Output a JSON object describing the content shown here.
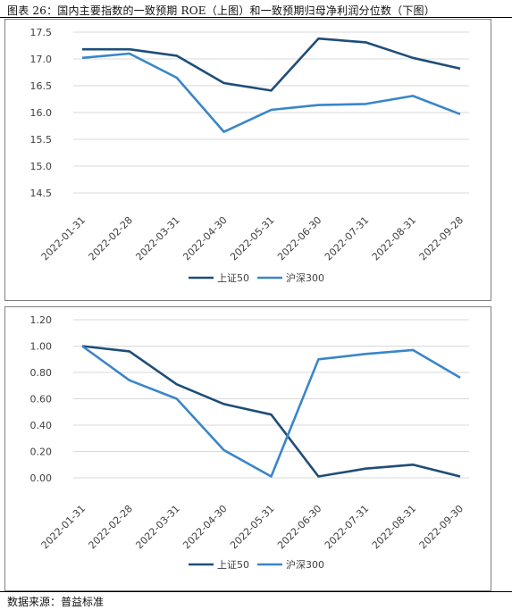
{
  "title": "图表 26：国内主要指数的一致预期 ROE（上图）和一致预期归母净利润分位数（下图）",
  "source": "数据来源：普益标准",
  "colors": {
    "sse50": "#1f4e79",
    "hs300": "#3a86c8"
  },
  "chart_data": [
    {
      "type": "line",
      "x": [
        "2022-01-31",
        "2022-02-28",
        "2022-03-31",
        "2022-04-30",
        "2022-05-31",
        "2022-06-30",
        "2022-07-31",
        "2022-08-31",
        "2022-09-28"
      ],
      "ylim": [
        14.5,
        17.5
      ],
      "yticks": [
        "14.5",
        "15.0",
        "15.5",
        "16.0",
        "16.5",
        "17.0",
        "17.5"
      ],
      "grid": true,
      "legend": "bottom",
      "series": [
        {
          "name": "上证50",
          "values": [
            17.18,
            17.18,
            17.06,
            16.55,
            16.41,
            17.38,
            17.31,
            17.02,
            16.82
          ]
        },
        {
          "name": "沪深300",
          "values": [
            17.02,
            17.1,
            16.65,
            15.64,
            16.05,
            16.14,
            16.16,
            16.31,
            15.97
          ]
        }
      ]
    },
    {
      "type": "line",
      "x": [
        "2022-01-31",
        "2022-02-28",
        "2022-03-31",
        "2022-04-30",
        "2022-05-31",
        "2022-06-30",
        "2022-07-31",
        "2022-08-31",
        "2022-09-30"
      ],
      "ylim": [
        0,
        1.2
      ],
      "yticks": [
        "0.00",
        "0.20",
        "0.40",
        "0.60",
        "0.80",
        "1.00",
        "1.20"
      ],
      "grid": true,
      "legend": "bottom",
      "series": [
        {
          "name": "上证50",
          "values": [
            1.0,
            0.96,
            0.71,
            0.56,
            0.48,
            0.01,
            0.07,
            0.1,
            0.01
          ]
        },
        {
          "name": "沪深300",
          "values": [
            1.0,
            0.74,
            0.6,
            0.21,
            0.01,
            0.9,
            0.94,
            0.97,
            0.76
          ]
        }
      ]
    }
  ]
}
